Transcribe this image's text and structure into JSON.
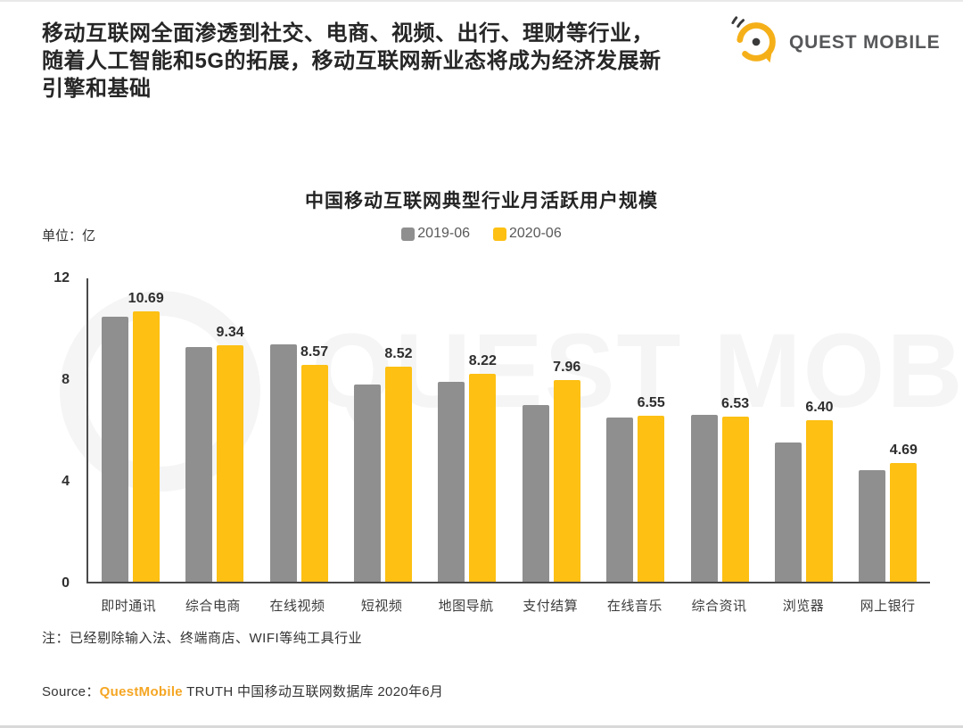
{
  "header": {
    "headline": "移动互联网全面渗透到社交、电商、视频、出行、理财等行业，\n随着人工智能和5G的拓展，移动互联网新业态将成为经济发展新\n引擎和基础",
    "logo_text": "QUEST MOBILE"
  },
  "colors": {
    "series_2019": "#8F8F8F",
    "series_2020": "#FDC013",
    "brand_orange": "#F5A623",
    "logo_yellow": "#F5B019"
  },
  "chart_data": {
    "type": "bar",
    "title": "中国移动互联网典型行业月活跃用户规模",
    "unit_label": "单位：亿",
    "watermark": "QUEST MOBILE",
    "categories": [
      "即时通讯",
      "综合电商",
      "在线视频",
      "短视频",
      "地图导航",
      "支付结算",
      "在线音乐",
      "综合资讯",
      "浏览器",
      "网上银行"
    ],
    "series": [
      {
        "name": "2019-06",
        "color": "#8F8F8F",
        "labeled": false,
        "values": [
          10.5,
          9.3,
          9.4,
          7.8,
          7.9,
          7.0,
          6.5,
          6.6,
          5.5,
          4.4
        ]
      },
      {
        "name": "2020-06",
        "color": "#FDC013",
        "labeled": true,
        "values": [
          10.69,
          9.34,
          8.57,
          8.52,
          8.22,
          7.96,
          6.55,
          6.53,
          6.4,
          4.69
        ]
      }
    ],
    "value_labels": [
      "10.69",
      "9.34",
      "8.57",
      "8.52",
      "8.22",
      "7.96",
      "6.55",
      "6.53",
      "6.40",
      "4.69"
    ],
    "ylim": [
      0,
      12
    ],
    "yticks": [
      12,
      8,
      4,
      0
    ],
    "grid": false,
    "legend_position": "top-center",
    "note": "2019-06 series values are estimated from bar heights; 2020-06 values are data labels shown on the chart"
  },
  "footer": {
    "note": "注：已经剔除输入法、终端商店、WIFI等纯工具行业",
    "source_prefix": "Source：",
    "source_brand": "QuestMobile",
    "source_suffix": " TRUTH 中国移动互联网数据库 2020年6月"
  }
}
